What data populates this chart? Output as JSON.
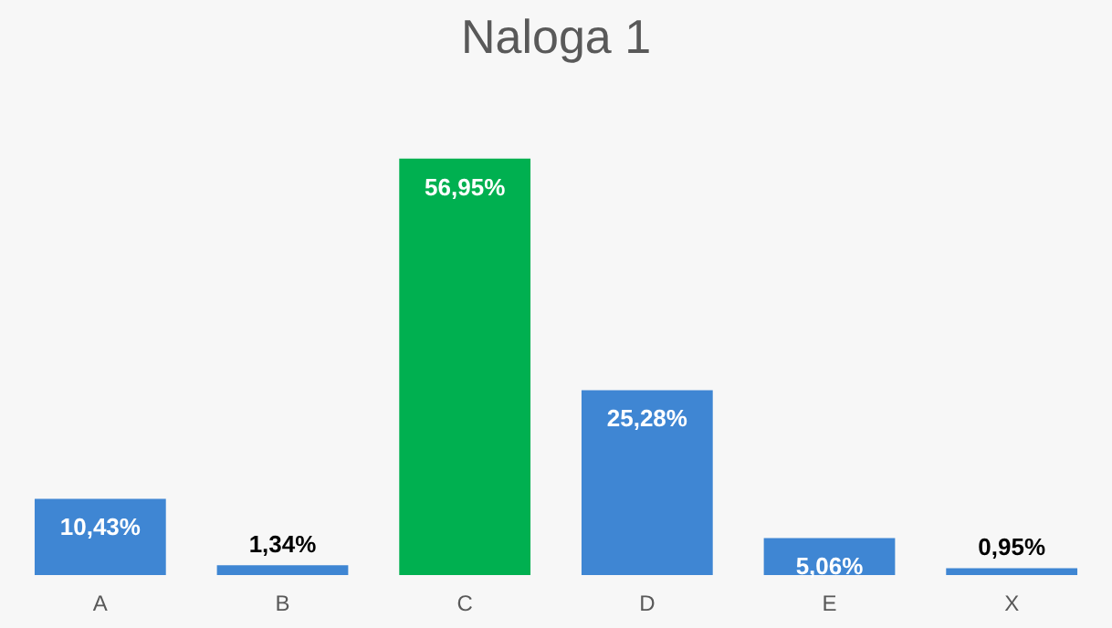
{
  "chart_data": {
    "type": "bar",
    "title": "Naloga 1",
    "categories": [
      "A",
      "B",
      "C",
      "D",
      "E",
      "X"
    ],
    "values": [
      10.43,
      1.34,
      56.95,
      25.28,
      5.06,
      0.95
    ],
    "colors": [
      "#3f86d3",
      "#3f86d3",
      "#00b050",
      "#3f86d3",
      "#3f86d3",
      "#3f86d3"
    ],
    "value_labels": [
      "10,43%",
      "1,34%",
      "56,95%",
      "25,28%",
      "5,06%",
      "0,95%"
    ]
  }
}
